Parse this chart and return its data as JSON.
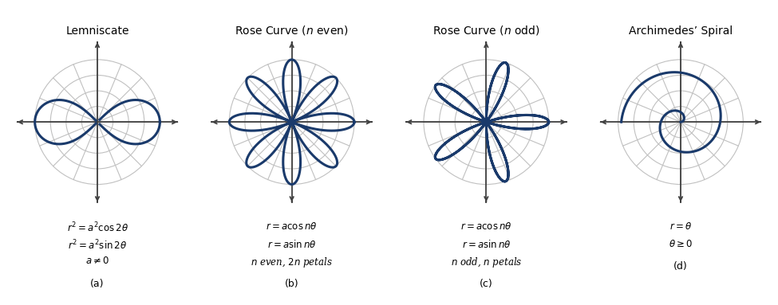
{
  "titles": [
    "Lemniscate",
    "Rose Curve ($n$ even)",
    "Rose Curve ($n$ odd)",
    "Archimedes’ Spiral"
  ],
  "labels_a": [
    "$r^2 = a^2\\cos2\\theta$",
    "$r^2 = a^2\\sin2\\theta$",
    "$a \\neq 0$"
  ],
  "labels_b": [
    "$r = a\\cos n\\theta$",
    "$r = a\\sin n\\theta$",
    "$n$ even, $2n$ petals"
  ],
  "labels_c": [
    "$r = a\\cos n\\theta$",
    "$r = a\\sin n\\theta$",
    "$n$ odd, $n$ petals"
  ],
  "labels_d": [
    "$r = \\theta$",
    "$\\theta \\geq 0$"
  ],
  "sublabels": [
    "(a)",
    "(b)",
    "(c)",
    "(d)"
  ],
  "curve_color": "#1a3a6b",
  "grid_color": "#c0c0c0",
  "axis_color": "#404040",
  "bg_color": "#ffffff",
  "curve_lw": 2.2,
  "grid_lw": 0.8,
  "axis_lw": 1.3,
  "n_circles": 4,
  "n_radial": 8,
  "xlim": 1.32,
  "ylim": 1.32,
  "arrow_size": 8
}
